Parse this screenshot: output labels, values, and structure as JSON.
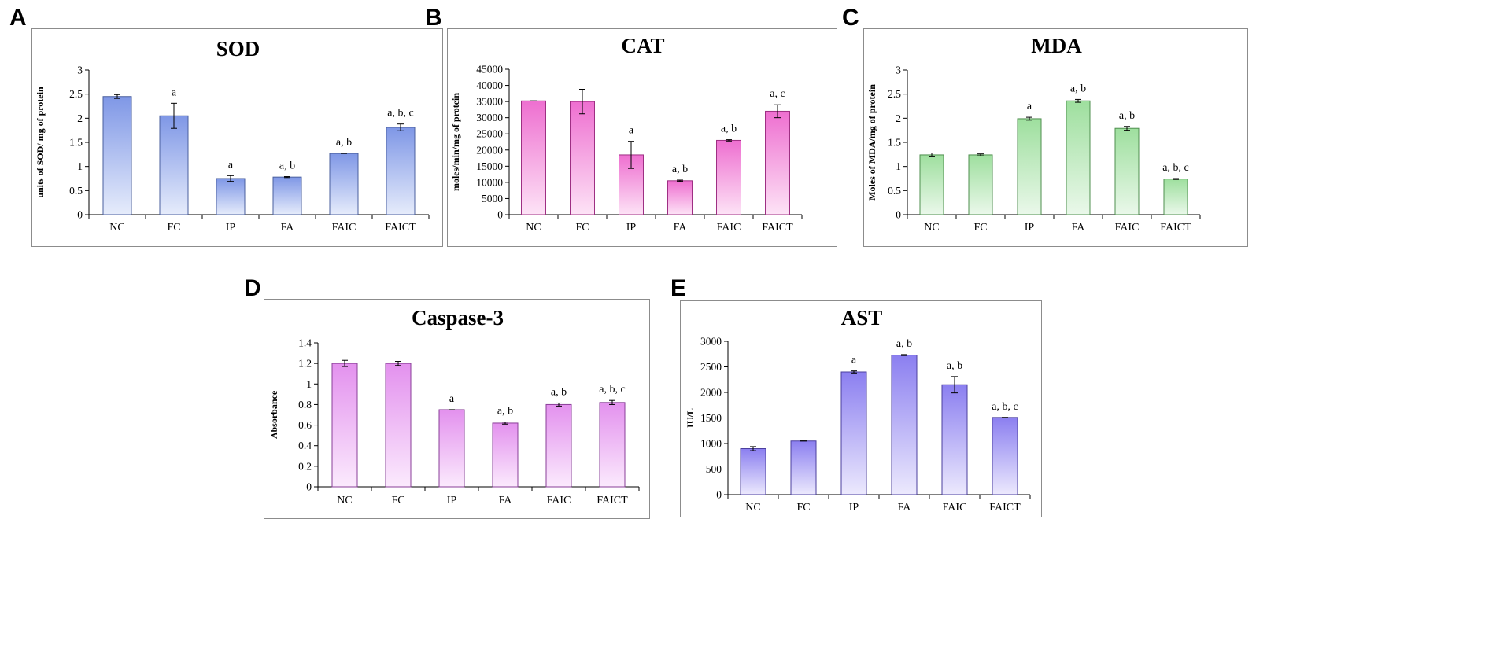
{
  "chart_data": [
    {
      "panel": "A",
      "type": "bar",
      "title": "SOD",
      "xlabel": "",
      "ylabel": "units of SOD/ mg of protein",
      "ylim": [
        0,
        3
      ],
      "yticks": [
        0,
        0.5,
        1,
        1.5,
        2,
        2.5,
        3
      ],
      "ytick_labels": [
        "0",
        "0.5",
        "1",
        "1.5",
        "2",
        "2.5",
        "3"
      ],
      "categories": [
        "NC",
        "FC",
        "IP",
        "FA",
        "FAIC",
        "FAICT"
      ],
      "values": [
        2.45,
        2.05,
        0.75,
        0.78,
        1.27,
        1.81
      ],
      "errors": [
        0.04,
        0.26,
        0.06,
        0.01,
        0.0,
        0.07
      ],
      "annotations": [
        "",
        "a",
        "a",
        "a, b",
        "a, b",
        "a, b, c"
      ],
      "colors": {
        "top": "#7f97e6",
        "bottom": "#e6ecfb",
        "edge": "#4a5f9e"
      }
    },
    {
      "panel": "B",
      "type": "bar",
      "title": "CAT",
      "xlabel": "",
      "ylabel": "moles/min/mg of protein",
      "ylim": [
        0,
        45000
      ],
      "yticks": [
        0,
        5000,
        10000,
        15000,
        20000,
        25000,
        30000,
        35000,
        40000,
        45000
      ],
      "ytick_labels": [
        "0",
        "5000",
        "10000",
        "15000",
        "20000",
        "25000",
        "30000",
        "35000",
        "40000",
        "45000"
      ],
      "categories": [
        "NC",
        "FC",
        "IP",
        "FA",
        "FAIC",
        "FAICT"
      ],
      "values": [
        35200,
        35000,
        18500,
        10500,
        23000,
        32000
      ],
      "errors": [
        0,
        3800,
        4200,
        200,
        200,
        2000
      ],
      "annotations": [
        "",
        "",
        "a",
        "a, b",
        "a, b",
        "a, c"
      ],
      "colors": {
        "top": "#ee6fd0",
        "bottom": "#fde3f6",
        "edge": "#9e2f83"
      }
    },
    {
      "panel": "C",
      "type": "bar",
      "title": "MDA",
      "xlabel": "",
      "ylabel": "Moles of MDA/mg of protein",
      "ylim": [
        0,
        3
      ],
      "yticks": [
        0,
        0.5,
        1,
        1.5,
        2,
        2.5,
        3
      ],
      "ytick_labels": [
        "0",
        "0.5",
        "1",
        "1.5",
        "2",
        "2.5",
        "3"
      ],
      "categories": [
        "NC",
        "FC",
        "IP",
        "FA",
        "FAIC",
        "FAICT"
      ],
      "values": [
        1.24,
        1.24,
        1.99,
        2.36,
        1.79,
        0.74
      ],
      "errors": [
        0.04,
        0.02,
        0.03,
        0.03,
        0.04,
        0.01
      ],
      "annotations": [
        "",
        "",
        "a",
        "a, b",
        "a, b",
        "a, b, c"
      ],
      "colors": {
        "top": "#9edf9e",
        "bottom": "#eaf8ea",
        "edge": "#4f8f4f"
      }
    },
    {
      "panel": "D",
      "type": "bar",
      "title": "Caspase-3",
      "xlabel": "",
      "ylabel": "Absorbance",
      "ylim": [
        0,
        1.4
      ],
      "yticks": [
        0,
        0.2,
        0.4,
        0.6,
        0.8,
        1,
        1.2,
        1.4
      ],
      "ytick_labels": [
        "0",
        "0.2",
        "0.4",
        "0.6",
        "0.8",
        "1",
        "1.2",
        "1.4"
      ],
      "categories": [
        "NC",
        "FC",
        "IP",
        "FA",
        "FAIC",
        "FAICT"
      ],
      "values": [
        1.2,
        1.2,
        0.75,
        0.62,
        0.8,
        0.82
      ],
      "errors": [
        0.03,
        0.02,
        0.0,
        0.01,
        0.015,
        0.02
      ],
      "annotations": [
        "",
        "",
        "a",
        "a, b",
        "a, b",
        "a, b, c"
      ],
      "colors": {
        "top": "#e391ee",
        "bottom": "#fbeafd",
        "edge": "#8a3f98"
      }
    },
    {
      "panel": "E",
      "type": "bar",
      "title": "AST",
      "xlabel": "",
      "ylabel": "IU/L",
      "ylim": [
        0,
        3000
      ],
      "yticks": [
        0,
        500,
        1000,
        1500,
        2000,
        2500,
        3000
      ],
      "ytick_labels": [
        "0",
        "500",
        "1000",
        "1500",
        "2000",
        "2500",
        "3000"
      ],
      "categories": [
        "NC",
        "FC",
        "IP",
        "FA",
        "FAIC",
        "FAICT"
      ],
      "values": [
        900,
        1050,
        2400,
        2730,
        2150,
        1510
      ],
      "errors": [
        40,
        0,
        20,
        10,
        160,
        0
      ],
      "annotations": [
        "",
        "",
        "a",
        "a, b",
        "a, b",
        "a, b, c"
      ],
      "colors": {
        "top": "#8b7ff0",
        "bottom": "#ece9fd",
        "edge": "#4b3f9e"
      }
    }
  ]
}
